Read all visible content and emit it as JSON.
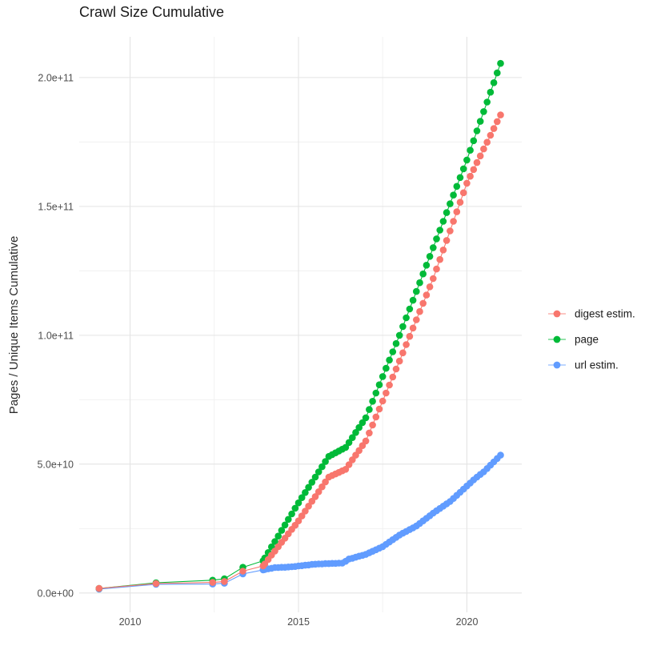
{
  "title": "Crawl Size Cumulative",
  "y_axis": {
    "label": "Pages / Unique Items Cumulative",
    "ticks": [
      "0.0e+00",
      "5.0e+10",
      "1.0e+11",
      "1.5e+11",
      "2.0e+11"
    ]
  },
  "x_axis": {
    "ticks": [
      "2010",
      "2015",
      "2020"
    ]
  },
  "legend": [
    {
      "label": "digest estim.",
      "color": "#F8766D"
    },
    {
      "label": "page",
      "color": "#00BA38"
    },
    {
      "label": "url estim.",
      "color": "#619CFF"
    }
  ],
  "chart_data": {
    "type": "line",
    "title": "Crawl Size Cumulative",
    "xlabel": "",
    "ylabel": "Pages / Unique Items Cumulative",
    "value_unit": "billions (1e9); multiply values by 1e9 for absolute counts",
    "xlim": [
      2008.49,
      2021.63
    ],
    "ylim_e9": [
      -7.5,
      215.8
    ],
    "x_major": [
      2010,
      2015,
      2020
    ],
    "x_minor": [
      2012.5,
      2017.5
    ],
    "y_major_e9": [
      0,
      50,
      100,
      150,
      200
    ],
    "y_minor_e9": [
      25,
      75,
      125,
      175
    ],
    "grid": true,
    "legend_position": "right",
    "marker_radius": 4.3,
    "grid_major_color": "#e4e4e4",
    "grid_minor_color": "#f0f0f0",
    "series": [
      {
        "name": "digest estim.",
        "color": "#F8766D",
        "points": [
          [
            2009.08,
            1.8
          ],
          [
            2010.77,
            3.7
          ],
          [
            2012.45,
            4.1
          ],
          [
            2012.8,
            4.5
          ],
          [
            2013.35,
            8.5
          ],
          [
            2013.95,
            10.5
          ],
          [
            2014.0,
            11.3
          ],
          [
            2014.1,
            13.0
          ],
          [
            2014.2,
            14.7
          ],
          [
            2014.3,
            16.3
          ],
          [
            2014.4,
            18.0
          ],
          [
            2014.5,
            19.7
          ],
          [
            2014.6,
            21.3
          ],
          [
            2014.7,
            23.0
          ],
          [
            2014.8,
            24.7
          ],
          [
            2014.9,
            26.3
          ],
          [
            2015.0,
            28.0
          ],
          [
            2015.1,
            29.9
          ],
          [
            2015.2,
            31.8
          ],
          [
            2015.3,
            33.7
          ],
          [
            2015.4,
            35.6
          ],
          [
            2015.5,
            37.4
          ],
          [
            2015.6,
            39.3
          ],
          [
            2015.7,
            41.2
          ],
          [
            2015.8,
            43.1
          ],
          [
            2015.9,
            45.0
          ],
          [
            2016.0,
            45.6
          ],
          [
            2016.1,
            46.2
          ],
          [
            2016.2,
            46.8
          ],
          [
            2016.3,
            47.4
          ],
          [
            2016.4,
            48.0
          ],
          [
            2016.5,
            49.8
          ],
          [
            2016.6,
            51.7
          ],
          [
            2016.7,
            53.5
          ],
          [
            2016.8,
            55.3
          ],
          [
            2016.9,
            57.2
          ],
          [
            2017.0,
            59.0
          ],
          [
            2017.1,
            62.1
          ],
          [
            2017.2,
            65.2
          ],
          [
            2017.3,
            68.3
          ],
          [
            2017.4,
            71.4
          ],
          [
            2017.5,
            74.5
          ],
          [
            2017.6,
            77.6
          ],
          [
            2017.7,
            80.7
          ],
          [
            2017.8,
            83.8
          ],
          [
            2017.9,
            86.9
          ],
          [
            2018.0,
            90.0
          ],
          [
            2018.1,
            93.2
          ],
          [
            2018.2,
            96.4
          ],
          [
            2018.3,
            99.6
          ],
          [
            2018.4,
            102.8
          ],
          [
            2018.5,
            106.0
          ],
          [
            2018.6,
            109.2
          ],
          [
            2018.7,
            112.4
          ],
          [
            2018.8,
            115.6
          ],
          [
            2018.9,
            118.8
          ],
          [
            2019.0,
            122.0
          ],
          [
            2019.1,
            125.7
          ],
          [
            2019.2,
            129.4
          ],
          [
            2019.3,
            133.1
          ],
          [
            2019.4,
            136.8
          ],
          [
            2019.5,
            140.5
          ],
          [
            2019.6,
            144.2
          ],
          [
            2019.7,
            147.9
          ],
          [
            2019.8,
            151.6
          ],
          [
            2019.9,
            155.3
          ],
          [
            2020.0,
            159.0
          ],
          [
            2020.1,
            161.7
          ],
          [
            2020.2,
            164.3
          ],
          [
            2020.3,
            167.0
          ],
          [
            2020.4,
            169.6
          ],
          [
            2020.5,
            172.3
          ],
          [
            2020.6,
            174.9
          ],
          [
            2020.7,
            177.6
          ],
          [
            2020.8,
            180.2
          ],
          [
            2020.9,
            182.9
          ],
          [
            2021.0,
            185.5
          ]
        ]
      },
      {
        "name": "page",
        "color": "#00BA38",
        "points": [
          [
            2009.08,
            1.8
          ],
          [
            2010.77,
            4.0
          ],
          [
            2012.45,
            5.0
          ],
          [
            2012.8,
            5.5
          ],
          [
            2013.35,
            10.0
          ],
          [
            2013.95,
            12.5
          ],
          [
            2014.0,
            13.6
          ],
          [
            2014.1,
            15.7
          ],
          [
            2014.2,
            17.9
          ],
          [
            2014.3,
            20.0
          ],
          [
            2014.4,
            22.1
          ],
          [
            2014.5,
            24.3
          ],
          [
            2014.6,
            26.4
          ],
          [
            2014.7,
            28.6
          ],
          [
            2014.8,
            30.7
          ],
          [
            2014.9,
            32.9
          ],
          [
            2015.0,
            35.0
          ],
          [
            2015.1,
            37.0
          ],
          [
            2015.2,
            39.0
          ],
          [
            2015.3,
            41.0
          ],
          [
            2015.4,
            43.0
          ],
          [
            2015.5,
            45.0
          ],
          [
            2015.6,
            47.0
          ],
          [
            2015.7,
            49.0
          ],
          [
            2015.8,
            51.0
          ],
          [
            2015.9,
            53.0
          ],
          [
            2016.0,
            53.7
          ],
          [
            2016.1,
            54.4
          ],
          [
            2016.2,
            55.1
          ],
          [
            2016.3,
            55.8
          ],
          [
            2016.4,
            56.5
          ],
          [
            2016.5,
            58.4
          ],
          [
            2016.6,
            60.3
          ],
          [
            2016.7,
            62.3
          ],
          [
            2016.8,
            64.2
          ],
          [
            2016.9,
            66.1
          ],
          [
            2017.0,
            68.0
          ],
          [
            2017.1,
            71.2
          ],
          [
            2017.2,
            74.4
          ],
          [
            2017.3,
            77.6
          ],
          [
            2017.4,
            80.8
          ],
          [
            2017.5,
            84.0
          ],
          [
            2017.6,
            87.2
          ],
          [
            2017.7,
            90.4
          ],
          [
            2017.8,
            93.6
          ],
          [
            2017.9,
            96.8
          ],
          [
            2018.0,
            100.0
          ],
          [
            2018.1,
            103.4
          ],
          [
            2018.2,
            106.8
          ],
          [
            2018.3,
            110.2
          ],
          [
            2018.4,
            113.6
          ],
          [
            2018.5,
            117.0
          ],
          [
            2018.6,
            120.4
          ],
          [
            2018.7,
            123.8
          ],
          [
            2018.8,
            127.2
          ],
          [
            2018.9,
            130.6
          ],
          [
            2019.0,
            134.0
          ],
          [
            2019.1,
            137.4
          ],
          [
            2019.2,
            140.8
          ],
          [
            2019.3,
            144.2
          ],
          [
            2019.4,
            147.6
          ],
          [
            2019.5,
            151.0
          ],
          [
            2019.6,
            154.4
          ],
          [
            2019.7,
            157.8
          ],
          [
            2019.8,
            161.2
          ],
          [
            2019.9,
            164.6
          ],
          [
            2020.0,
            168.0
          ],
          [
            2020.1,
            171.8
          ],
          [
            2020.2,
            175.5
          ],
          [
            2020.3,
            179.3
          ],
          [
            2020.4,
            183.0
          ],
          [
            2020.5,
            186.8
          ],
          [
            2020.6,
            190.5
          ],
          [
            2020.7,
            194.3
          ],
          [
            2020.8,
            198.0
          ],
          [
            2020.9,
            201.8
          ],
          [
            2021.0,
            205.5
          ]
        ]
      },
      {
        "name": "url estim.",
        "color": "#619CFF",
        "points": [
          [
            2009.08,
            1.5
          ],
          [
            2010.77,
            3.4
          ],
          [
            2012.45,
            3.5
          ],
          [
            2012.8,
            3.8
          ],
          [
            2013.35,
            7.4
          ],
          [
            2013.95,
            9.0
          ],
          [
            2014.0,
            9.1
          ],
          [
            2014.1,
            9.4
          ],
          [
            2014.2,
            9.6
          ],
          [
            2014.3,
            9.9
          ],
          [
            2014.4,
            9.9
          ],
          [
            2014.5,
            10.0
          ],
          [
            2014.6,
            10.0
          ],
          [
            2014.7,
            10.1
          ],
          [
            2014.8,
            10.2
          ],
          [
            2014.9,
            10.3
          ],
          [
            2015.0,
            10.5
          ],
          [
            2015.1,
            10.6
          ],
          [
            2015.2,
            10.8
          ],
          [
            2015.3,
            10.9
          ],
          [
            2015.4,
            11.1
          ],
          [
            2015.5,
            11.2
          ],
          [
            2015.6,
            11.3
          ],
          [
            2015.7,
            11.3
          ],
          [
            2015.8,
            11.4
          ],
          [
            2015.9,
            11.4
          ],
          [
            2016.0,
            11.5
          ],
          [
            2016.1,
            11.5
          ],
          [
            2016.2,
            11.6
          ],
          [
            2016.3,
            11.6
          ],
          [
            2016.4,
            12.3
          ],
          [
            2016.5,
            13.2
          ],
          [
            2016.6,
            13.5
          ],
          [
            2016.7,
            13.9
          ],
          [
            2016.8,
            14.3
          ],
          [
            2016.9,
            14.6
          ],
          [
            2017.0,
            15.0
          ],
          [
            2017.1,
            15.6
          ],
          [
            2017.2,
            16.2
          ],
          [
            2017.3,
            16.8
          ],
          [
            2017.4,
            17.4
          ],
          [
            2017.5,
            18.0
          ],
          [
            2017.6,
            18.9
          ],
          [
            2017.7,
            19.8
          ],
          [
            2017.8,
            20.7
          ],
          [
            2017.9,
            21.6
          ],
          [
            2018.0,
            22.5
          ],
          [
            2018.1,
            23.2
          ],
          [
            2018.2,
            23.9
          ],
          [
            2018.3,
            24.6
          ],
          [
            2018.4,
            25.3
          ],
          [
            2018.5,
            26.0
          ],
          [
            2018.6,
            27.0
          ],
          [
            2018.7,
            28.0
          ],
          [
            2018.8,
            29.0
          ],
          [
            2018.9,
            30.0
          ],
          [
            2019.0,
            31.0
          ],
          [
            2019.1,
            31.9
          ],
          [
            2019.2,
            32.8
          ],
          [
            2019.3,
            33.7
          ],
          [
            2019.4,
            34.6
          ],
          [
            2019.5,
            35.5
          ],
          [
            2019.6,
            36.7
          ],
          [
            2019.7,
            37.9
          ],
          [
            2019.8,
            39.1
          ],
          [
            2019.9,
            40.3
          ],
          [
            2020.0,
            41.5
          ],
          [
            2020.1,
            42.7
          ],
          [
            2020.2,
            43.9
          ],
          [
            2020.3,
            45.0
          ],
          [
            2020.4,
            46.0
          ],
          [
            2020.5,
            47.0
          ],
          [
            2020.6,
            48.3
          ],
          [
            2020.7,
            49.6
          ],
          [
            2020.8,
            50.9
          ],
          [
            2020.9,
            52.2
          ],
          [
            2021.0,
            53.5
          ]
        ]
      }
    ]
  }
}
